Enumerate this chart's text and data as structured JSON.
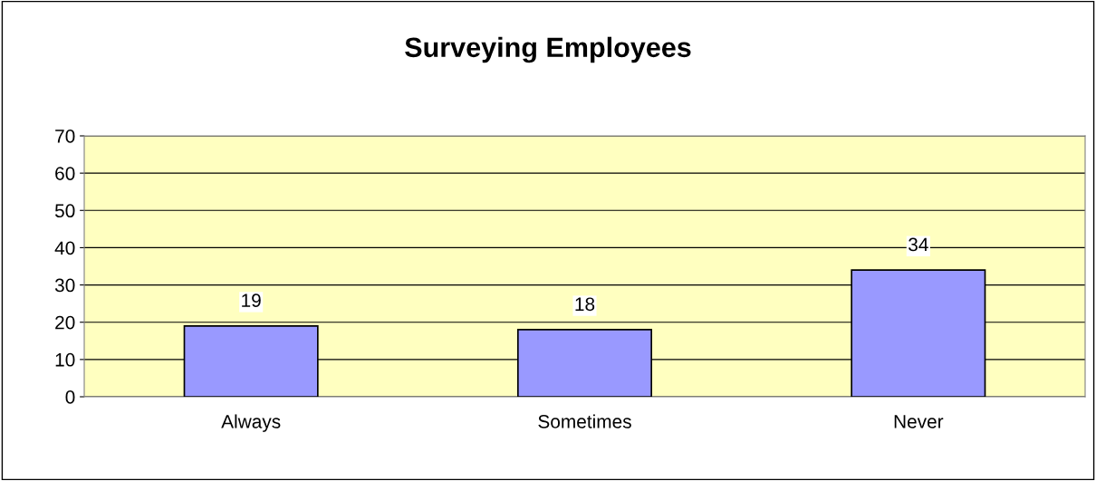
{
  "chart_data": {
    "type": "bar",
    "title": "Surveying Employees",
    "categories": [
      "Always",
      "Sometimes",
      "Never"
    ],
    "values": [
      19,
      18,
      34
    ],
    "color": "#9999ff",
    "ylim": [
      0,
      70
    ],
    "yticks": [
      0,
      10,
      20,
      30,
      40,
      50,
      60,
      70
    ],
    "grid": "y",
    "data_labels": true
  }
}
